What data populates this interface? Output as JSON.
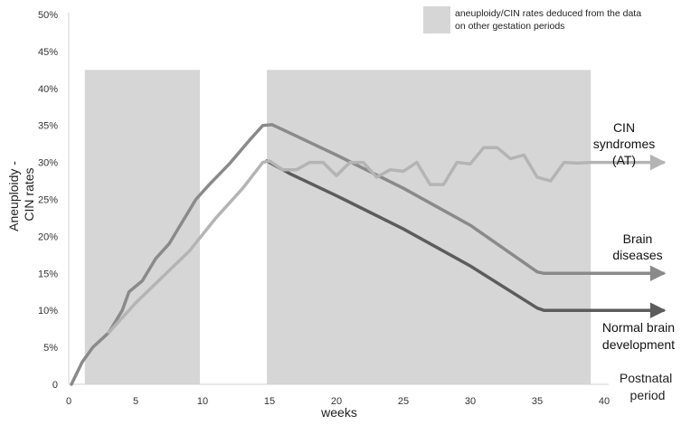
{
  "chart_data": {
    "type": "line",
    "xlabel": "weeks",
    "ylabel_lines": [
      "Aneuploidy -",
      "CIN rates"
    ],
    "x_end_label_lines": [
      "Postnatal",
      "period"
    ],
    "xlim": [
      0,
      40
    ],
    "ylim": [
      0,
      50
    ],
    "x_ticks": [
      0,
      5,
      10,
      15,
      20,
      25,
      30,
      35,
      40
    ],
    "y_ticks": [
      0,
      5,
      10,
      15,
      20,
      25,
      30,
      35,
      40,
      45,
      50
    ],
    "y_tick_labels": [
      "0",
      "5%",
      "10%",
      "15%",
      "20%",
      "25%",
      "30%",
      "35%",
      "40%",
      "45%",
      "50%"
    ],
    "legend": {
      "lines": [
        "aneuploidy/CIN rates deduced from the data",
        "on other gestation periods"
      ],
      "color": "#d6d6d6"
    },
    "shaded_regions": [
      {
        "x0": 1.2,
        "x1": 9.8,
        "y0": 0,
        "y1": 42.5
      },
      {
        "x0": 14.8,
        "x1": 39.0,
        "y0": 0,
        "y1": 42.5
      }
    ],
    "series": [
      {
        "label_lines": [
          "Brain",
          "diseases"
        ],
        "color": "#8a8a8a",
        "points": [
          [
            0.2,
            0
          ],
          [
            1,
            3
          ],
          [
            1.8,
            5
          ],
          [
            3,
            7
          ],
          [
            4,
            10
          ],
          [
            4.5,
            12.5
          ],
          [
            5.5,
            14
          ],
          [
            6.5,
            17
          ],
          [
            7.5,
            19
          ],
          [
            8.5,
            22
          ],
          [
            9.5,
            25
          ],
          [
            10.5,
            27
          ],
          [
            12,
            29.8
          ],
          [
            13.5,
            33
          ],
          [
            14.5,
            35
          ],
          [
            15.2,
            35.1
          ],
          [
            16.5,
            34
          ],
          [
            20,
            31
          ],
          [
            25,
            26.5
          ],
          [
            30,
            21.5
          ],
          [
            35,
            15.2
          ],
          [
            35.5,
            15
          ]
        ],
        "extension_to": 44.5
      },
      {
        "label_lines": [
          "Normal brain",
          "development"
        ],
        "color": "#5c5c5c",
        "points": [
          [
            14.8,
            30.2
          ],
          [
            16.5,
            28.5
          ],
          [
            20,
            25.5
          ],
          [
            25,
            21
          ],
          [
            30,
            16
          ],
          [
            35,
            10.3
          ],
          [
            35.5,
            10
          ]
        ],
        "extension_to": 44.5
      },
      {
        "label_lines": [
          "CIN syndromes",
          "(AT)"
        ],
        "color": "#b4b4b4",
        "points": [
          [
            3,
            7
          ],
          [
            5,
            11
          ],
          [
            7,
            14.5
          ],
          [
            9,
            18
          ],
          [
            11,
            22.5
          ],
          [
            13,
            26.5
          ],
          [
            14.5,
            30
          ],
          [
            15,
            30.2
          ],
          [
            16,
            29
          ],
          [
            17,
            29
          ],
          [
            18,
            30
          ],
          [
            19,
            30
          ],
          [
            20,
            28.2
          ],
          [
            21,
            30
          ],
          [
            22,
            30
          ],
          [
            23,
            28
          ],
          [
            24,
            29
          ],
          [
            25,
            28.8
          ],
          [
            26,
            30
          ],
          [
            27,
            27
          ],
          [
            28,
            27
          ],
          [
            29,
            30
          ],
          [
            30,
            29.8
          ],
          [
            31,
            32
          ],
          [
            32,
            32
          ],
          [
            33,
            30.5
          ],
          [
            34,
            31
          ],
          [
            35,
            28
          ],
          [
            36,
            27.5
          ],
          [
            37,
            30
          ],
          [
            38,
            29.9
          ],
          [
            39,
            30
          ]
        ],
        "extension_to": 44.5
      }
    ]
  }
}
